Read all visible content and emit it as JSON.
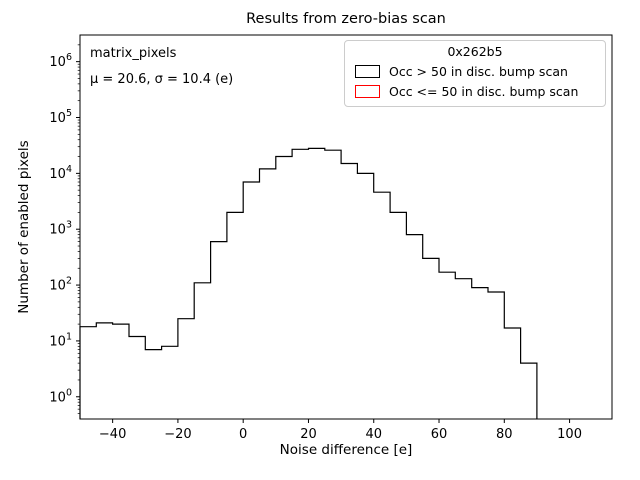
{
  "chart_data": {
    "type": "histogram-step",
    "title": "Results from zero-bias scan",
    "xlabel": "Noise difference [e]",
    "ylabel": "Number of enabled pixels",
    "ylog": true,
    "xlim": [
      -50,
      113
    ],
    "ylim": [
      0.4,
      3000000
    ],
    "xticks": [
      -40,
      -20,
      0,
      20,
      40,
      60,
      80,
      100
    ],
    "ytick_exponents": [
      0,
      1,
      2,
      3,
      4,
      5,
      6
    ],
    "bin_edges": [
      -50,
      -45,
      -40,
      -35,
      -30,
      -25,
      -20,
      -15,
      -10,
      -5,
      0,
      5,
      10,
      15,
      20,
      25,
      30,
      35,
      40,
      45,
      50,
      55,
      60,
      65,
      70,
      75,
      80,
      85,
      90
    ],
    "series": [
      {
        "name": "Occ > 50 in disc. bump scan",
        "color": "#000000",
        "counts": [
          18,
          21,
          20,
          12,
          7,
          8,
          25,
          110,
          600,
          2000,
          7000,
          12000,
          20000,
          27000,
          28000,
          26000,
          15000,
          10000,
          4600,
          2000,
          800,
          300,
          170,
          130,
          90,
          75,
          17,
          4
        ]
      },
      {
        "name": "Occ <= 50 in disc. bump scan",
        "color": "#ff0000",
        "counts": []
      }
    ],
    "legend": {
      "title": "0x262b5",
      "entries": [
        "Occ > 50 in disc. bump scan",
        "Occ <= 50 in disc. bump scan"
      ]
    },
    "annotations": [
      "matrix_pixels",
      "μ = 20.6, σ = 10.4 (e)"
    ]
  }
}
